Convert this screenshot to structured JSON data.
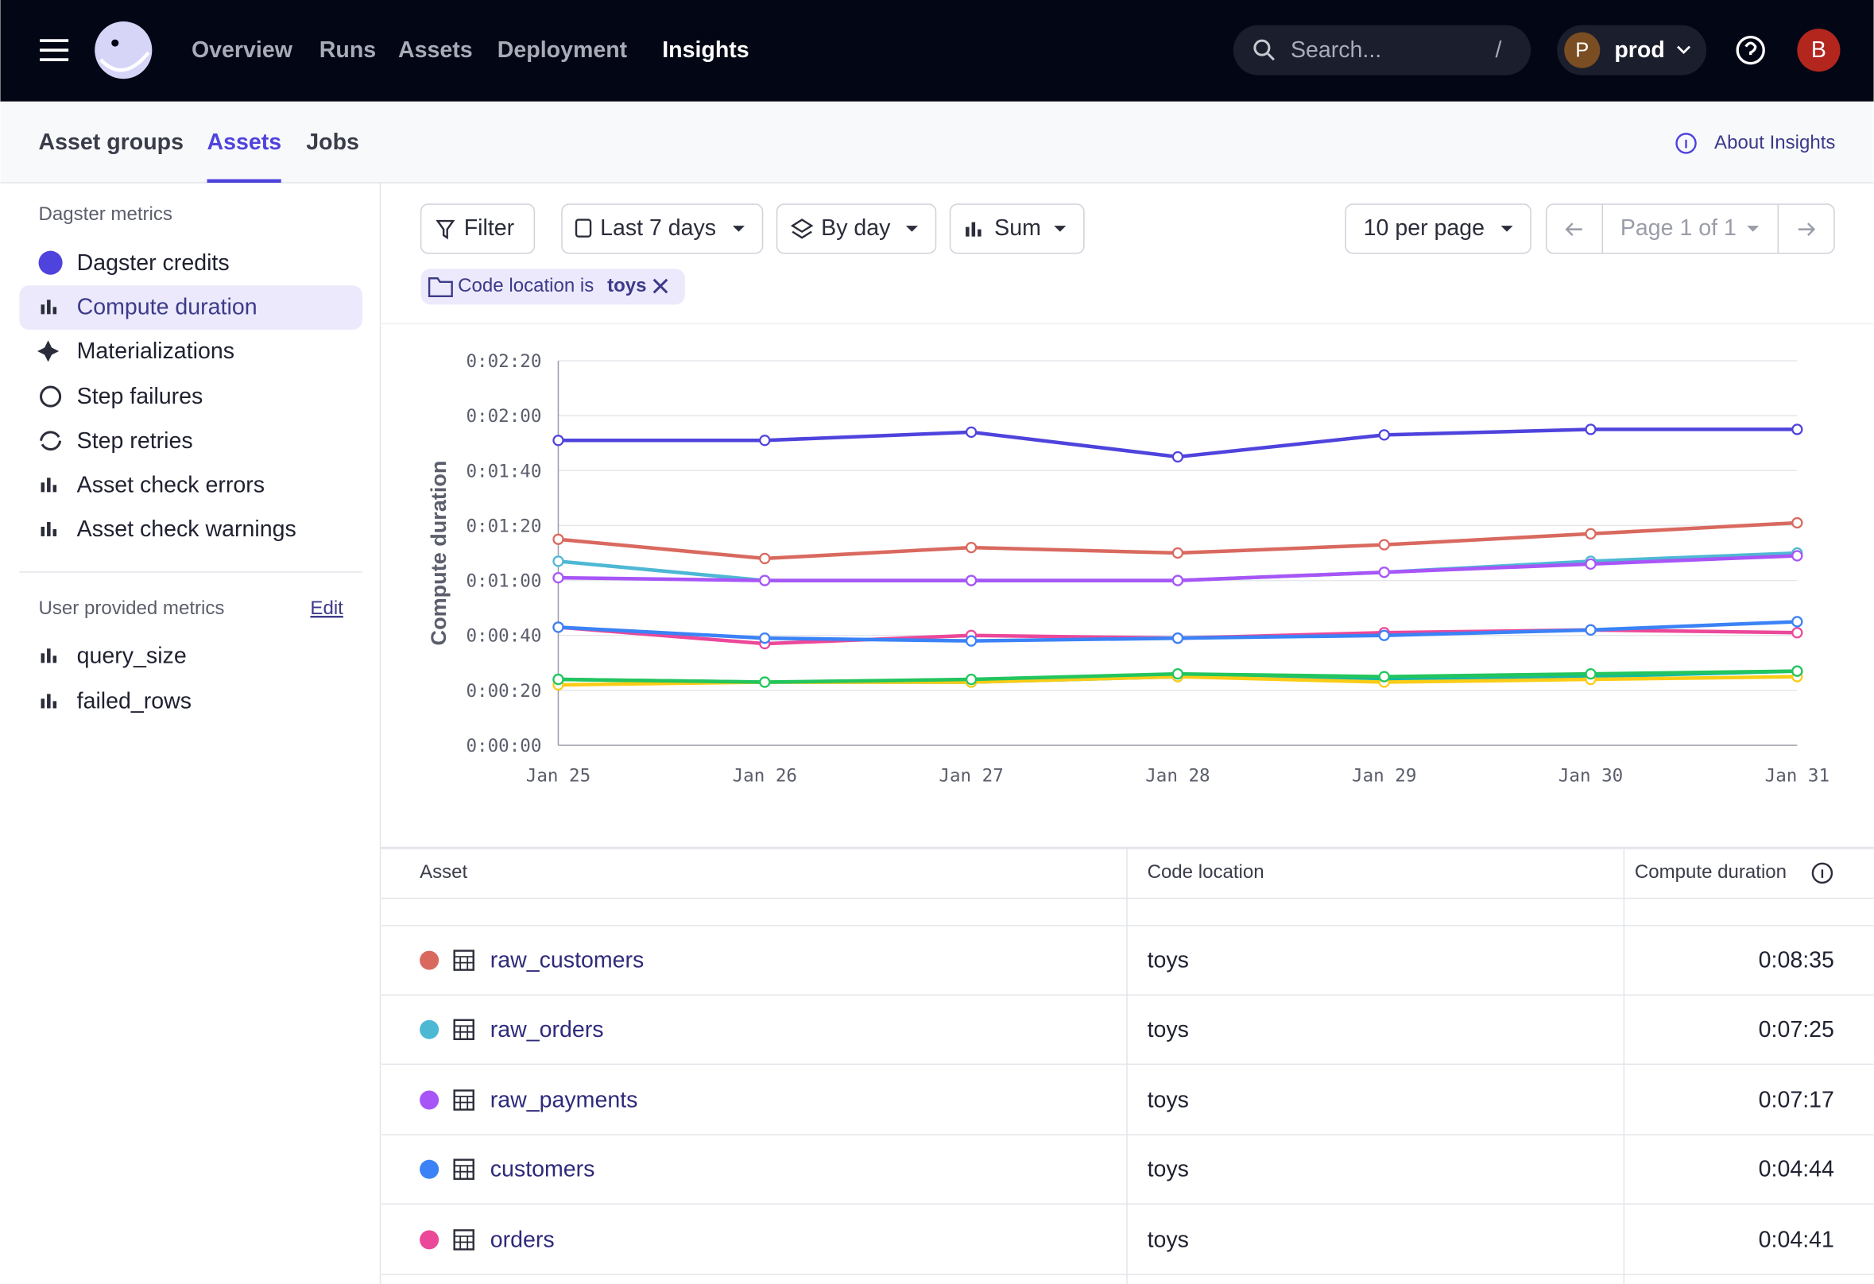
{
  "nav": {
    "items": [
      "Overview",
      "Runs",
      "Assets",
      "Deployment",
      "Insights"
    ],
    "search_placeholder": "Search...",
    "search_shortcut": "/",
    "deployment_initial": "P",
    "deployment": "prod",
    "user_initial": "B"
  },
  "tabs": {
    "items": [
      "Asset groups",
      "Assets",
      "Jobs"
    ],
    "about": "About Insights"
  },
  "sidebar": {
    "dagster_heading": "Dagster metrics",
    "dagster_metrics": [
      "Dagster credits",
      "Compute duration",
      "Materializations",
      "Step failures",
      "Step retries",
      "Asset check errors",
      "Asset check warnings"
    ],
    "user_heading": "User provided metrics",
    "edit": "Edit",
    "user_metrics": [
      "query_size",
      "failed_rows"
    ]
  },
  "toolbar": {
    "filter": "Filter",
    "range": "Last 7 days",
    "grouping": "By day",
    "aggregation": "Sum",
    "page_size": "10 per page",
    "page": "Page 1 of 1",
    "chip_prefix": "Code location is",
    "chip_value": "toys"
  },
  "chart_data": {
    "type": "line",
    "y_label": "Compute duration",
    "categories": [
      "Jan 25",
      "Jan 26",
      "Jan 27",
      "Jan 28",
      "Jan 29",
      "Jan 30",
      "Jan 31"
    ],
    "ylim": [
      0,
      140
    ],
    "yticks": [
      {
        "value": 0,
        "label": "0:00:00"
      },
      {
        "value": 20,
        "label": "0:00:20"
      },
      {
        "value": 40,
        "label": "0:00:40"
      },
      {
        "value": 60,
        "label": "0:01:00"
      },
      {
        "value": 80,
        "label": "0:01:20"
      },
      {
        "value": 100,
        "label": "0:01:40"
      },
      {
        "value": 120,
        "label": "0:02:00"
      },
      {
        "value": 140,
        "label": "0:02:20"
      }
    ],
    "grid": true,
    "series": [
      {
        "color": "#4f43dd",
        "values": [
          111,
          111,
          114,
          105,
          113,
          115,
          115
        ]
      },
      {
        "name": "raw_customers",
        "color": "#d9695f",
        "values": [
          75,
          68,
          72,
          70,
          73,
          77,
          81
        ]
      },
      {
        "name": "raw_orders",
        "color": "#4db8d4",
        "values": [
          67,
          60,
          60,
          60,
          63,
          67,
          70
        ]
      },
      {
        "name": "raw_payments",
        "color": "#a855f7",
        "values": [
          61,
          60,
          60,
          60,
          63,
          66,
          69
        ]
      },
      {
        "name": "orders",
        "color": "#ec4899",
        "values": [
          43,
          37,
          40,
          39,
          41,
          42,
          41
        ]
      },
      {
        "name": "customers",
        "color": "#3b82f6",
        "values": [
          43,
          39,
          38,
          39,
          40,
          42,
          45
        ]
      },
      {
        "color": "#14b8a6",
        "values": [
          24,
          23,
          23,
          25,
          24,
          25,
          27
        ]
      },
      {
        "color": "#facc15",
        "values": [
          22,
          23,
          23,
          25,
          23,
          24,
          25
        ]
      },
      {
        "color": "#22c55e",
        "values": [
          24,
          23,
          24,
          26,
          25,
          26,
          27
        ]
      }
    ]
  },
  "table": {
    "headers": [
      "Asset",
      "Code location",
      "Compute duration"
    ],
    "rows": [
      {
        "color": "#d9695f",
        "cells": [
          "raw_customers",
          "toys",
          "0:08:35"
        ]
      },
      {
        "color": "#4db8d4",
        "cells": [
          "raw_orders",
          "toys",
          "0:07:25"
        ]
      },
      {
        "color": "#a855f7",
        "cells": [
          "raw_payments",
          "toys",
          "0:07:17"
        ]
      },
      {
        "color": "#3b82f6",
        "cells": [
          "customers",
          "toys",
          "0:04:44"
        ]
      },
      {
        "color": "#ec4899",
        "cells": [
          "orders",
          "toys",
          "0:04:41"
        ]
      }
    ]
  }
}
